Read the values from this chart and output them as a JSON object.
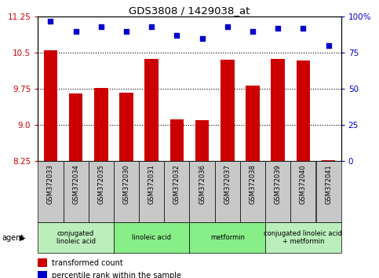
{
  "title": "GDS3808 / 1429038_at",
  "samples": [
    "GSM372033",
    "GSM372034",
    "GSM372035",
    "GSM372030",
    "GSM372031",
    "GSM372032",
    "GSM372036",
    "GSM372037",
    "GSM372038",
    "GSM372039",
    "GSM372040",
    "GSM372041"
  ],
  "transformed_count": [
    10.55,
    9.65,
    9.77,
    9.68,
    10.38,
    9.12,
    9.11,
    10.35,
    9.82,
    10.38,
    10.34,
    8.27
  ],
  "percentile_rank": [
    97,
    90,
    93,
    90,
    93,
    87,
    85,
    93,
    90,
    92,
    92,
    80
  ],
  "ylim_left": [
    8.25,
    11.25
  ],
  "ylim_right": [
    0,
    100
  ],
  "yticks_left": [
    8.25,
    9.0,
    9.75,
    10.5,
    11.25
  ],
  "yticks_right": [
    0,
    25,
    50,
    75,
    100
  ],
  "grid_yticks": [
    9.0,
    9.75,
    10.5
  ],
  "bar_color": "#cc0000",
  "dot_color": "#0000cc",
  "bg_color": "#ffffff",
  "sample_box_color": "#c8c8c8",
  "agent_groups": [
    {
      "label": "conjugated\nlinoleic acid",
      "start": 0,
      "end": 3,
      "color": "#bbeebb"
    },
    {
      "label": "linoleic acid",
      "start": 3,
      "end": 6,
      "color": "#88ee88"
    },
    {
      "label": "metformin",
      "start": 6,
      "end": 9,
      "color": "#88ee88"
    },
    {
      "label": "conjugated linoleic acid\n+ metformin",
      "start": 9,
      "end": 12,
      "color": "#bbeebb"
    }
  ],
  "legend_transformed": "transformed count",
  "legend_percentile": "percentile rank within the sample",
  "xlabel_agent": "agent"
}
